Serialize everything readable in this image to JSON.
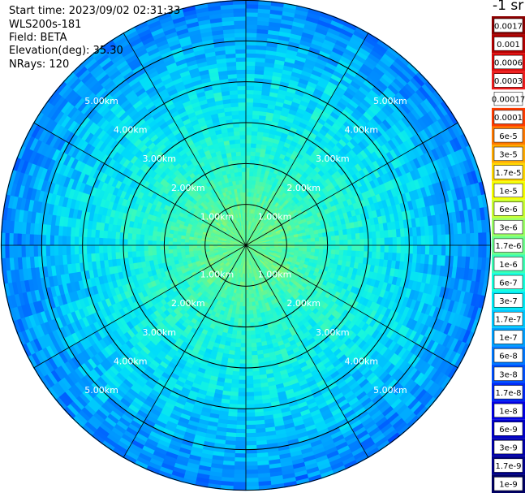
{
  "header": {
    "start_time": "Start time: 2023/09/02 02:31:33",
    "instrument": "WLS200s-181",
    "field": "Field: BETA",
    "elevation": "Elevation(deg): 35.30",
    "nrays": "NRays: 120"
  },
  "chart_data": {
    "type": "heatmap",
    "projection": "polar-ppi",
    "n_rays": 120,
    "elevation_deg": 35.3,
    "units_label": "-1 sr",
    "range_rings_km": [
      1,
      2,
      3,
      4,
      5
    ],
    "range_labels": [
      "1.00km",
      "2.00km",
      "3.00km",
      "4.00km",
      "5.00km"
    ],
    "max_range_km": 6.0,
    "spoke_angles_deg": [
      0,
      30,
      60,
      90,
      120,
      150,
      180,
      210,
      240,
      270,
      300,
      330
    ],
    "colorbar": {
      "ticks": [
        "0.0017",
        "0.001",
        "0.0006",
        "0.0003",
        "0.00017",
        "0.0001",
        "6e-5",
        "3e-5",
        "1.7e-5",
        "1e-5",
        "6e-6",
        "3e-6",
        "1.7e-6",
        "1e-6",
        "6e-7",
        "3e-7",
        "1.7e-7",
        "1e-7",
        "6e-8",
        "3e-8",
        "1.7e-8",
        "1e-8",
        "6e-9",
        "3e-9",
        "1.7e-9",
        "1e-9"
      ],
      "colors": [
        "#8c0000",
        "#b40000",
        "#dc0a0a",
        "#f01e1e",
        "#ffffff",
        "#ff3c00",
        "#ff7800",
        "#ffaa00",
        "#ffd700",
        "#f5ff00",
        "#c8ff32",
        "#9bff64",
        "#6eff8c",
        "#3cffb4",
        "#14ffdc",
        "#00ebf5",
        "#00c8ff",
        "#00a0ff",
        "#0078ff",
        "#0050ff",
        "#0028f5",
        "#0000e6",
        "#0000c8",
        "#0000aa",
        "#00008c",
        "#000064"
      ],
      "scale": "log"
    },
    "radial_profile": [
      {
        "range_km": 0.0,
        "log_beta": -5.85
      },
      {
        "range_km": 1.0,
        "log_beta": -5.9
      },
      {
        "range_km": 1.5,
        "log_beta": -6.1
      },
      {
        "range_km": 2.0,
        "log_beta": -6.25
      },
      {
        "range_km": 3.0,
        "log_beta": -6.45
      },
      {
        "range_km": 4.0,
        "log_beta": -6.7
      },
      {
        "range_km": 5.0,
        "log_beta": -7.0
      },
      {
        "range_km": 6.0,
        "log_beta": -7.4
      }
    ]
  }
}
